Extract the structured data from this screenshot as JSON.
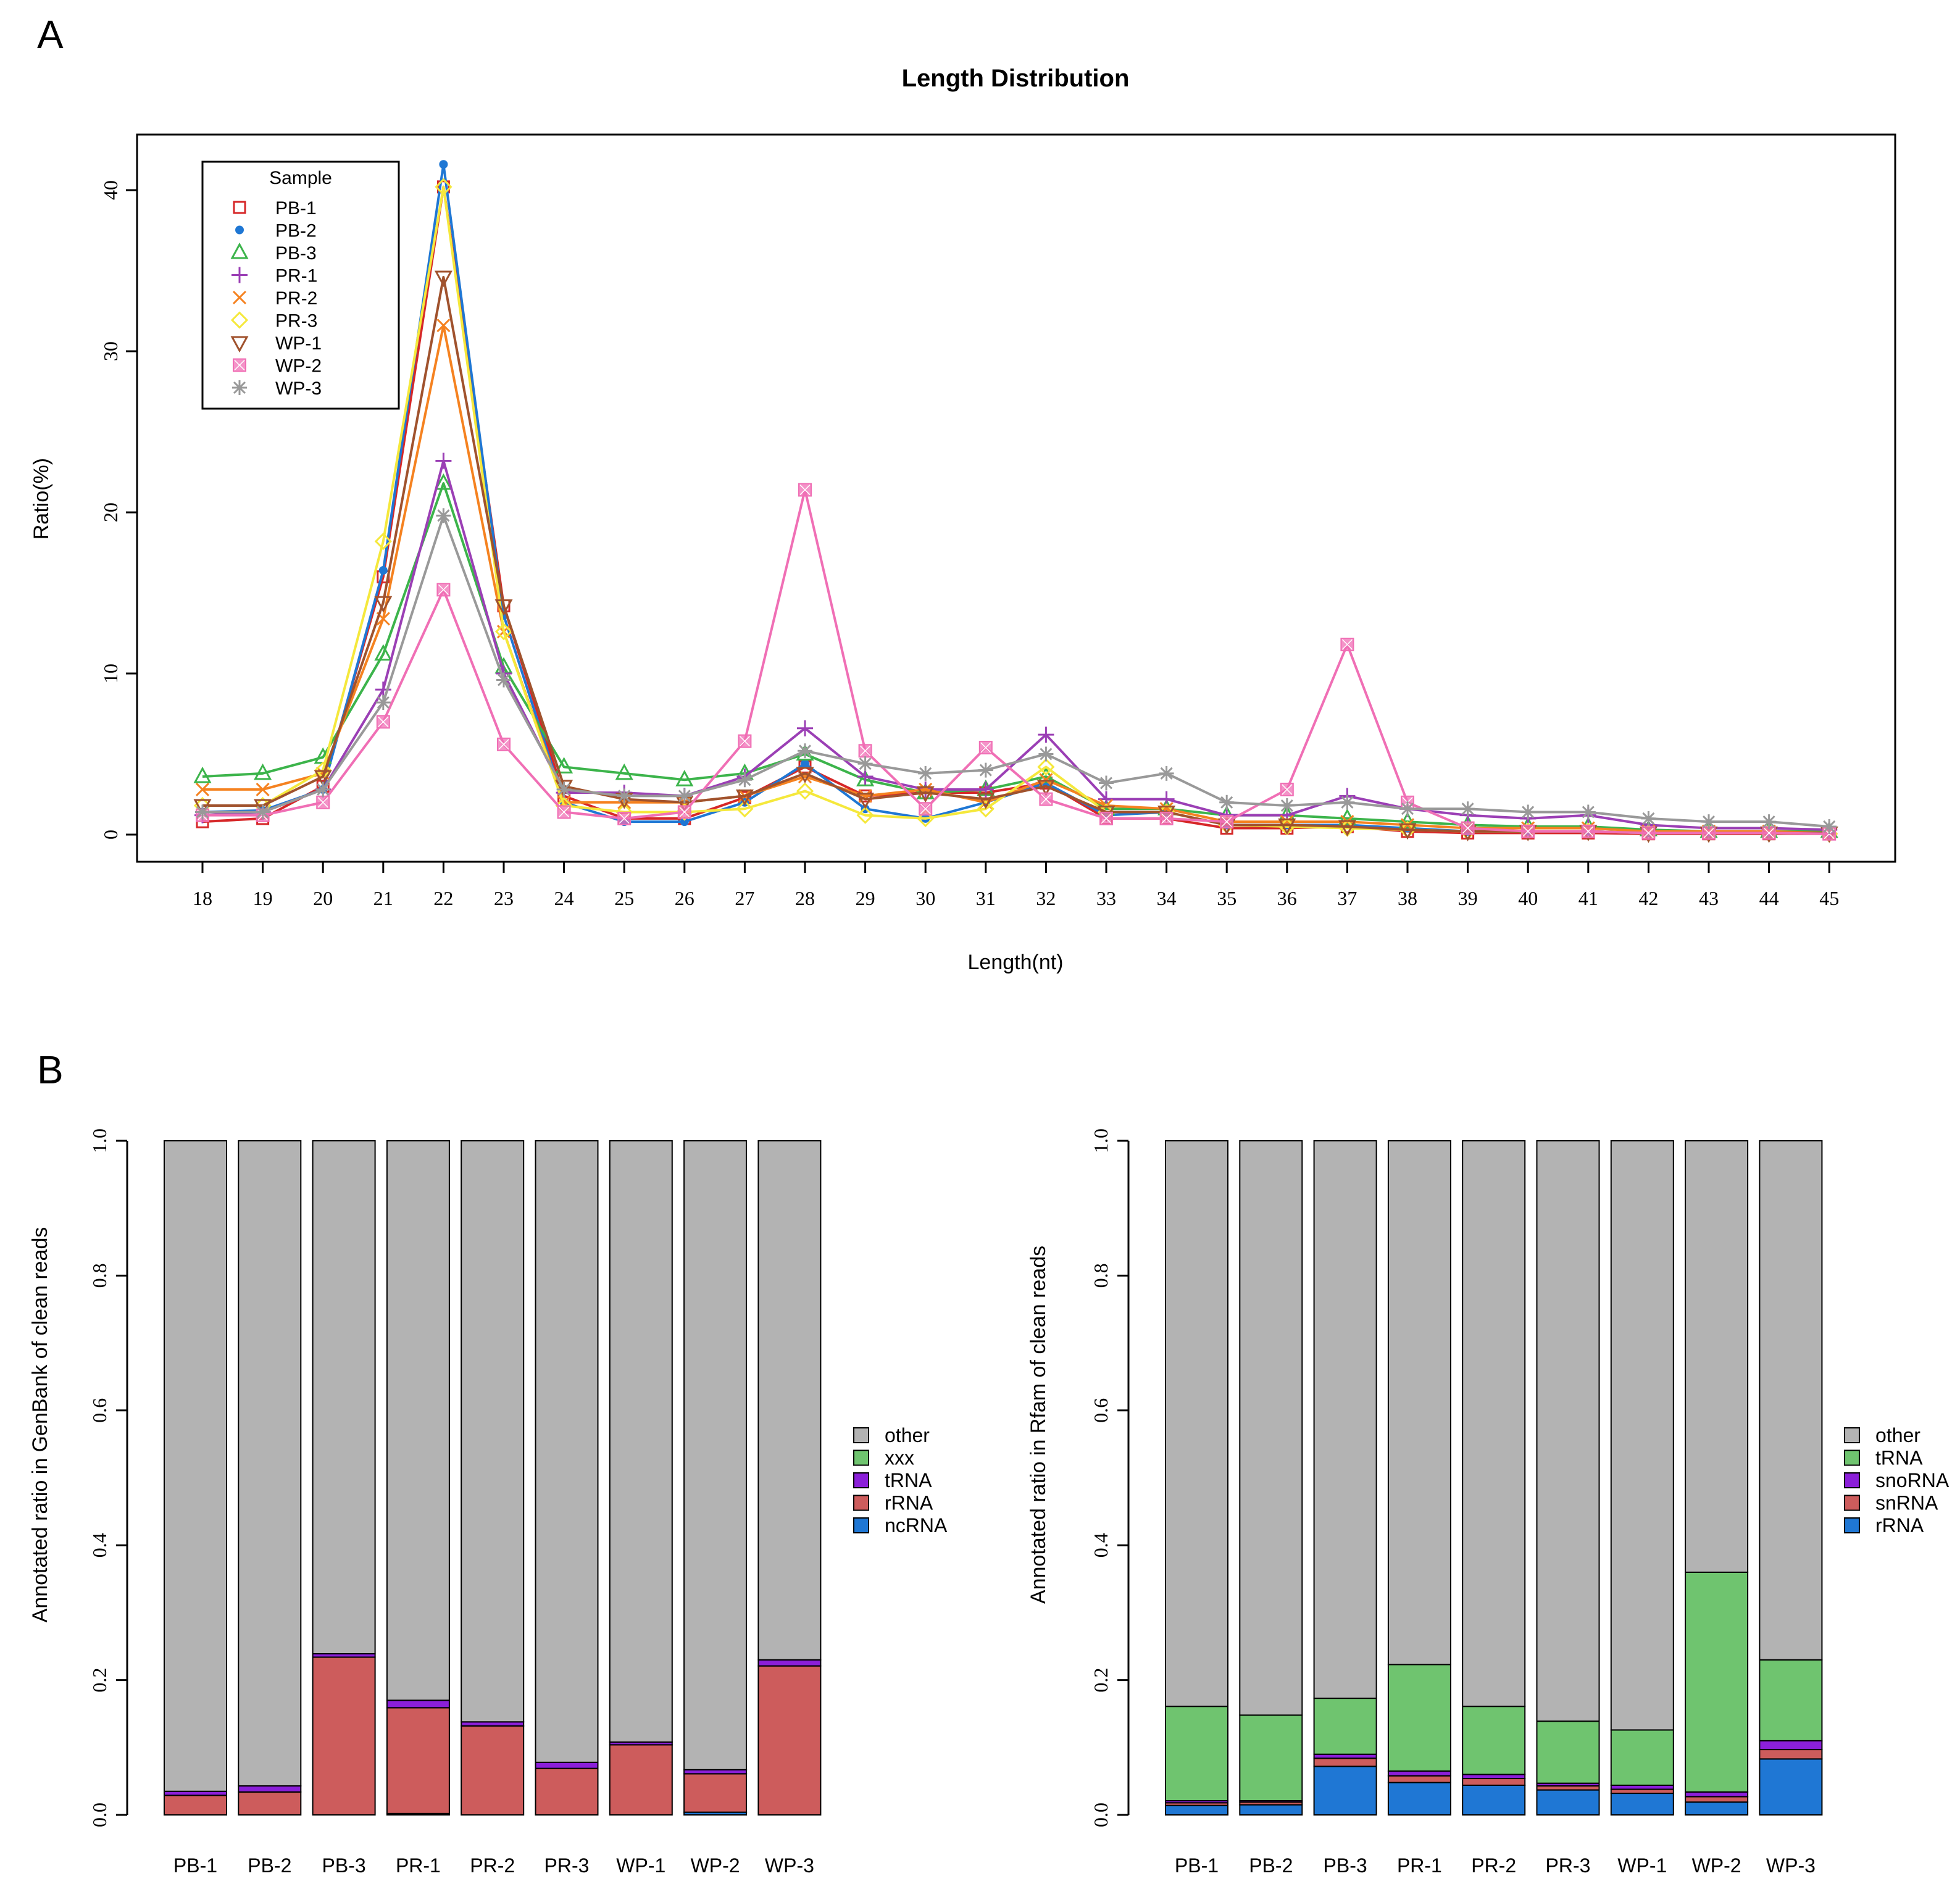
{
  "panels": {
    "a_label": "A",
    "b_label": "B"
  },
  "colors": {
    "PB-1": "#d62728",
    "PB-2": "#1f77d4",
    "PB-3": "#3cb44b",
    "PR-1": "#9b3fb5",
    "PR-2": "#f58220",
    "PR-3": "#f5e83c",
    "WP-1": "#a0522d",
    "WP-2": "#f06fb5",
    "WP-3": "#999999",
    "other": "#b3b3b3",
    "green": "#6fc46f",
    "purple": "#8b1fd9",
    "red": "#cd5c5c",
    "blue": "#1f77d4"
  },
  "chart_data": [
    {
      "type": "line",
      "title": "Length Distribution",
      "xlabel": "Length(nt)",
      "ylabel": "Ratio(%)",
      "ylim": [
        0,
        42
      ],
      "yticks": [
        0,
        10,
        20,
        30,
        40
      ],
      "legend_title": "Sample",
      "legend_position": "top-left",
      "x": [
        18,
        19,
        20,
        21,
        22,
        23,
        24,
        25,
        26,
        27,
        28,
        29,
        30,
        31,
        32,
        33,
        34,
        35,
        36,
        37,
        38,
        39,
        40,
        41,
        42,
        43,
        44,
        45
      ],
      "series": [
        {
          "name": "PB-1",
          "marker": "square",
          "values": [
            0.8,
            1.0,
            3.0,
            16.0,
            40.2,
            14.2,
            2.4,
            1.0,
            1.0,
            2.3,
            4.2,
            2.4,
            2.6,
            2.6,
            3.2,
            1.0,
            1.0,
            0.4,
            0.4,
            0.5,
            0.2,
            0.1,
            0.1,
            0.1,
            0.05,
            0.05,
            0.05,
            0.05
          ]
        },
        {
          "name": "PB-2",
          "marker": "circle-small",
          "values": [
            1.4,
            1.5,
            2.8,
            16.4,
            41.6,
            13.6,
            2.0,
            0.8,
            0.8,
            2.0,
            4.4,
            1.6,
            1.0,
            2.0,
            3.2,
            1.2,
            1.4,
            0.6,
            0.6,
            0.6,
            0.4,
            0.2,
            0.2,
            0.2,
            0.1,
            0.1,
            0.1,
            0.05
          ]
        },
        {
          "name": "PB-3",
          "marker": "triangle",
          "values": [
            3.6,
            3.8,
            4.8,
            11.2,
            21.8,
            10.4,
            4.2,
            3.8,
            3.4,
            3.8,
            5.0,
            3.4,
            2.6,
            2.8,
            3.6,
            1.6,
            1.6,
            1.2,
            1.2,
            1.0,
            0.8,
            0.6,
            0.5,
            0.5,
            0.3,
            0.2,
            0.2,
            0.2
          ]
        },
        {
          "name": "PR-1",
          "marker": "plus",
          "values": [
            1.2,
            1.4,
            2.8,
            9.0,
            23.2,
            10.0,
            2.6,
            2.6,
            2.4,
            3.6,
            6.6,
            3.6,
            2.8,
            2.8,
            6.2,
            2.2,
            2.2,
            1.2,
            1.2,
            2.4,
            1.6,
            1.2,
            1.0,
            1.2,
            0.6,
            0.4,
            0.4,
            0.3
          ]
        },
        {
          "name": "PR-2",
          "marker": "x",
          "values": [
            2.8,
            2.8,
            3.8,
            13.4,
            31.6,
            12.6,
            2.0,
            2.0,
            2.0,
            2.4,
            3.6,
            2.4,
            2.8,
            2.0,
            3.4,
            1.8,
            1.6,
            0.8,
            0.8,
            0.8,
            0.6,
            0.4,
            0.4,
            0.4,
            0.2,
            0.2,
            0.2,
            0.1
          ]
        },
        {
          "name": "PR-3",
          "marker": "diamond",
          "values": [
            1.8,
            1.8,
            4.0,
            18.2,
            40.2,
            12.6,
            1.8,
            1.4,
            1.4,
            1.6,
            2.7,
            1.2,
            1.0,
            1.6,
            4.2,
            1.4,
            1.4,
            0.6,
            0.5,
            0.4,
            0.3,
            0.2,
            0.2,
            0.2,
            0.1,
            0.1,
            0.1,
            0.05
          ]
        },
        {
          "name": "WP-1",
          "marker": "triangle-down",
          "values": [
            1.8,
            1.8,
            3.6,
            14.4,
            34.6,
            14.2,
            3.0,
            2.2,
            2.0,
            2.4,
            3.8,
            2.2,
            2.6,
            2.2,
            3.0,
            1.4,
            1.4,
            0.6,
            0.6,
            0.5,
            0.3,
            0.2,
            0.2,
            0.2,
            0.1,
            0.1,
            0.1,
            0.1
          ]
        },
        {
          "name": "WP-2",
          "marker": "square-filled",
          "values": [
            1.2,
            1.2,
            2.0,
            7.0,
            15.2,
            5.6,
            1.4,
            1.0,
            1.4,
            5.8,
            21.4,
            5.2,
            1.6,
            5.4,
            2.2,
            1.0,
            1.0,
            0.8,
            2.8,
            11.8,
            2.0,
            0.4,
            0.2,
            0.2,
            0.1,
            0.1,
            0.1,
            0.05
          ]
        },
        {
          "name": "WP-3",
          "marker": "asterisk",
          "values": [
            1.4,
            1.4,
            2.8,
            8.2,
            19.8,
            9.6,
            2.8,
            2.4,
            2.4,
            3.4,
            5.2,
            4.4,
            3.8,
            4.0,
            5.0,
            3.2,
            3.8,
            2.0,
            1.8,
            2.0,
            1.6,
            1.6,
            1.4,
            1.4,
            1.0,
            0.8,
            0.8,
            0.5
          ]
        }
      ]
    },
    {
      "type": "bar",
      "stacked": true,
      "ylabel": "Annotated ratio in GenBank of clean reads",
      "ylim": [
        0,
        1.0
      ],
      "yticks": [
        "0.0",
        "0.2",
        "0.4",
        "0.6",
        "0.8",
        "1.0"
      ],
      "categories": [
        "PB-1",
        "PB-2",
        "PB-3",
        "PR-1",
        "PR-2",
        "PR-3",
        "WP-1",
        "WP-2",
        "WP-3"
      ],
      "legend_position": "right",
      "legend_order": [
        "other",
        "xxx",
        "tRNA",
        "rRNA",
        "ncRNA"
      ],
      "series": [
        {
          "name": "ncRNA",
          "color_key": "blue",
          "values": [
            0.0,
            0.0,
            0.0,
            0.002,
            0.0,
            0.0,
            0.0,
            0.004,
            0.0
          ]
        },
        {
          "name": "rRNA",
          "color_key": "red",
          "values": [
            0.029,
            0.034,
            0.234,
            0.157,
            0.132,
            0.069,
            0.104,
            0.057,
            0.221
          ]
        },
        {
          "name": "tRNA",
          "color_key": "purple",
          "values": [
            0.006,
            0.009,
            0.005,
            0.011,
            0.006,
            0.009,
            0.004,
            0.006,
            0.009
          ]
        },
        {
          "name": "xxx",
          "color_key": "green",
          "values": [
            0.0,
            0.0,
            0.0,
            0.0,
            0.0,
            0.0,
            0.0,
            0.0,
            0.0
          ]
        },
        {
          "name": "other",
          "color_key": "other",
          "values": [
            0.965,
            0.957,
            0.761,
            0.83,
            0.862,
            0.922,
            0.892,
            0.933,
            0.77
          ]
        }
      ]
    },
    {
      "type": "bar",
      "stacked": true,
      "ylabel": "Annotated ratio in Rfam of clean reads",
      "ylim": [
        0,
        1.0
      ],
      "yticks": [
        "0.0",
        "0.2",
        "0.4",
        "0.6",
        "0.8",
        "1.0"
      ],
      "categories": [
        "PB-1",
        "PB-2",
        "PB-3",
        "PR-1",
        "PR-2",
        "PR-3",
        "WP-1",
        "WP-2",
        "WP-3"
      ],
      "legend_position": "right",
      "legend_order": [
        "other",
        "tRNA",
        "snoRNA",
        "snRNA",
        "rRNA"
      ],
      "series": [
        {
          "name": "rRNA",
          "color_key": "blue",
          "values": [
            0.014,
            0.015,
            0.072,
            0.048,
            0.044,
            0.037,
            0.032,
            0.019,
            0.083
          ]
        },
        {
          "name": "snRNA",
          "color_key": "red",
          "values": [
            0.004,
            0.004,
            0.012,
            0.01,
            0.01,
            0.006,
            0.006,
            0.008,
            0.014
          ]
        },
        {
          "name": "snoRNA",
          "color_key": "purple",
          "values": [
            0.003,
            0.002,
            0.006,
            0.007,
            0.006,
            0.004,
            0.006,
            0.007,
            0.013
          ]
        },
        {
          "name": "tRNA",
          "color_key": "green",
          "values": [
            0.14,
            0.127,
            0.083,
            0.158,
            0.101,
            0.092,
            0.082,
            0.326,
            0.12
          ]
        },
        {
          "name": "other",
          "color_key": "other",
          "values": [
            0.839,
            0.852,
            0.827,
            0.777,
            0.839,
            0.861,
            0.874,
            0.64,
            0.77
          ]
        }
      ]
    }
  ]
}
